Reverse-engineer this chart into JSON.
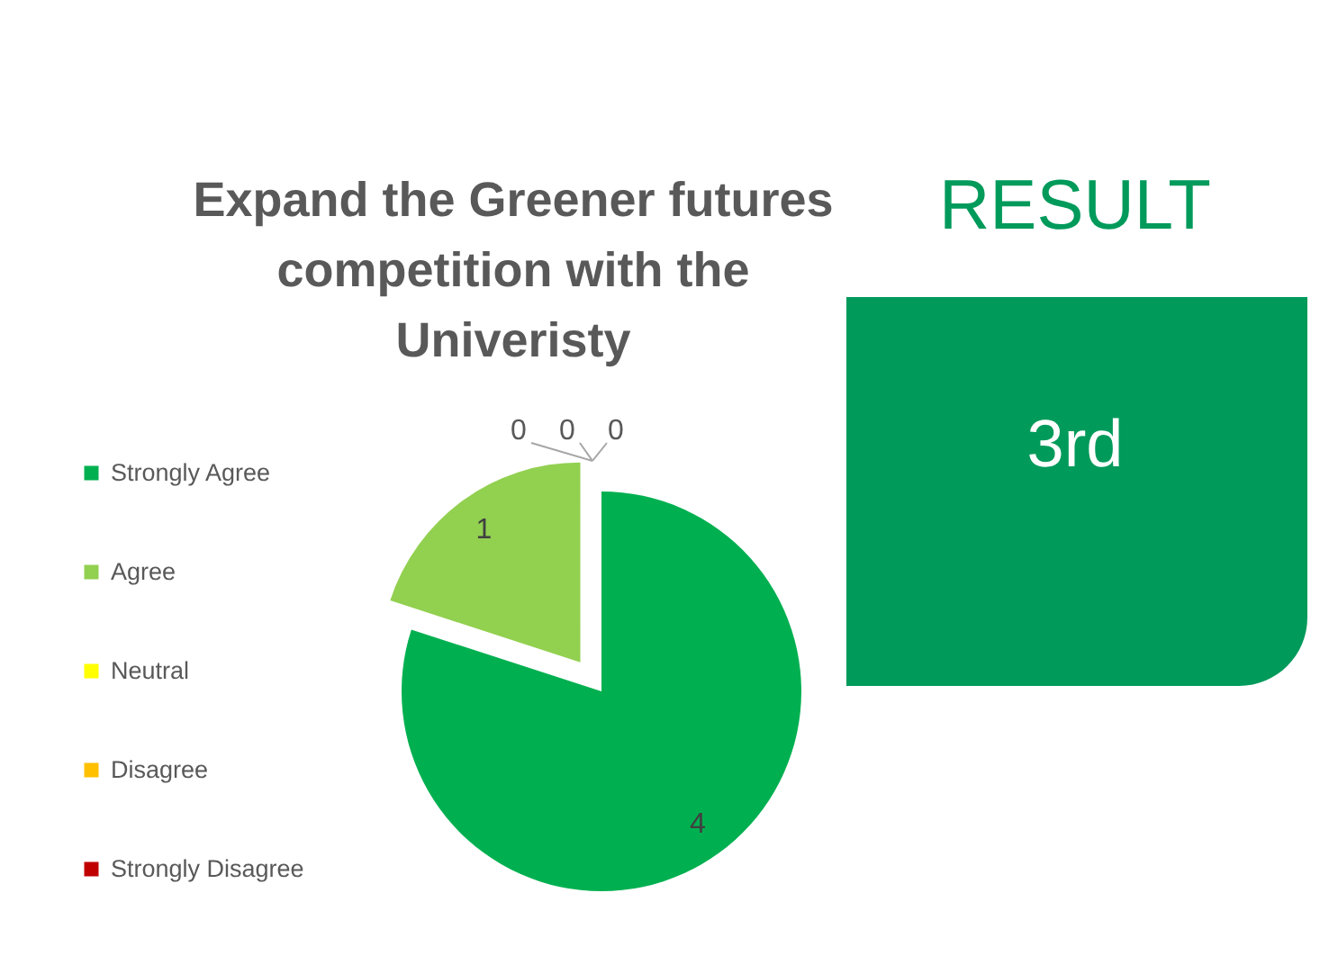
{
  "chart_data": [
    {
      "type": "pie",
      "title": "Expand the Greener futures competition with the Univeristy",
      "categories": [
        "Strongly Agree",
        "Agree",
        "Neutral",
        "Disagree",
        "Strongly Disagree"
      ],
      "values": [
        4,
        1,
        0,
        0,
        0
      ],
      "colors": [
        "#00b050",
        "#92d050",
        "#ffff00",
        "#ffc000",
        "#c00000"
      ],
      "value_labels": [
        "4",
        "1",
        "0",
        "0",
        "0"
      ],
      "legend": "left"
    },
    {
      "type": "other",
      "title": "RESULT",
      "annotations": [
        "3rd"
      ]
    }
  ]
}
